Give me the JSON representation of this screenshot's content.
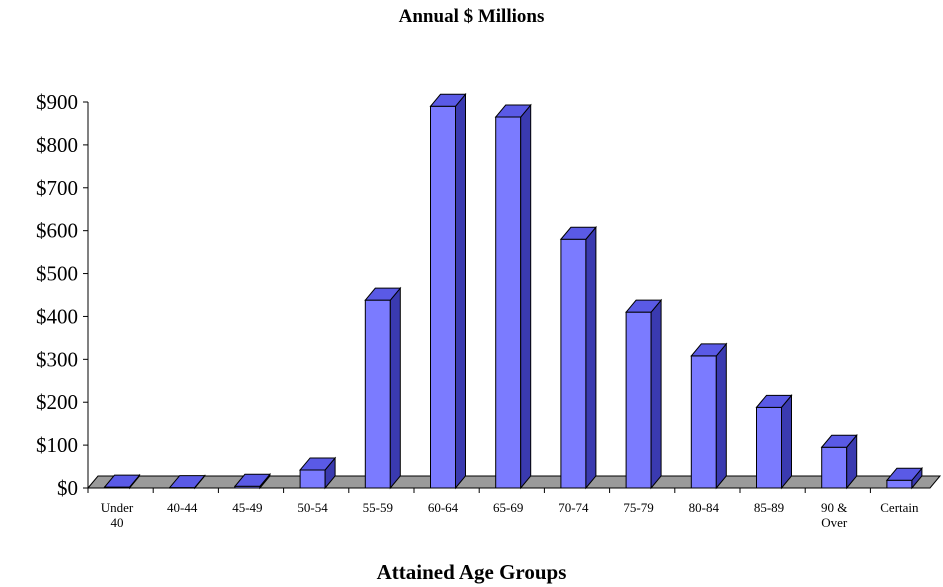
{
  "chart_data": {
    "type": "bar",
    "title": "Annual  $ Millions",
    "xlabel": "Attained  Age Groups",
    "ylabel": "",
    "categories": [
      [
        "Under",
        "40"
      ],
      [
        "40-44"
      ],
      [
        "45-49"
      ],
      [
        "50-54"
      ],
      [
        "55-59"
      ],
      [
        "60-64"
      ],
      [
        "65-69"
      ],
      [
        "70-74"
      ],
      [
        "75-79"
      ],
      [
        "80-84"
      ],
      [
        "85-89"
      ],
      [
        "90 &",
        "Over"
      ],
      [
        "Certain"
      ]
    ],
    "values": [
      2,
      1,
      4,
      42,
      438,
      890,
      865,
      580,
      410,
      308,
      188,
      95,
      18
    ],
    "ylim": [
      0,
      900
    ],
    "yticks": [
      0,
      100,
      200,
      300,
      400,
      500,
      600,
      700,
      800,
      900
    ],
    "ytick_labels": [
      "$0",
      "$100",
      "$200",
      "$300",
      "$400",
      "$500",
      "$600",
      "$700",
      "$800",
      "$900"
    ],
    "grid": false,
    "legend": "none",
    "style": "3d-bar",
    "colors": {
      "bar_front": "#7b7bff",
      "bar_top": "#5a5ae6",
      "bar_side": "#3a3ab0",
      "floor": "#9a9a9a",
      "outline": "#000000"
    }
  }
}
